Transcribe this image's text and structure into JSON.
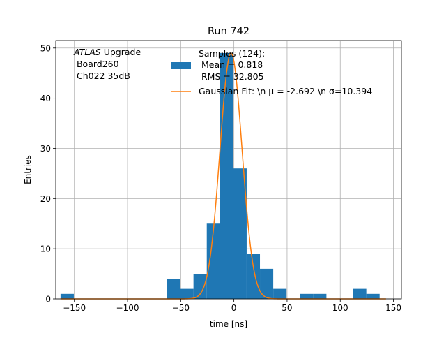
{
  "chart_data": {
    "type": "bar",
    "title": "Run 742",
    "xlabel": "time [ns]",
    "ylabel": "Entries",
    "xlim": [
      -167.5,
      157.5
    ],
    "ylim": [
      0,
      51.5
    ],
    "xticks": [
      -150,
      -100,
      -50,
      0,
      50,
      100,
      150
    ],
    "xtick_labels": [
      "−150",
      "−100",
      "−50",
      "0",
      "50",
      "100",
      "150"
    ],
    "yticks": [
      0,
      10,
      20,
      30,
      40,
      50
    ],
    "ytick_labels": [
      "0",
      "10",
      "20",
      "30",
      "40",
      "50"
    ],
    "grid": true,
    "legend_placement": "upper-right",
    "colors": {
      "hist": "#1f77b4",
      "fit": "#ff7f0e"
    },
    "annotation": {
      "italic": "ATLAS",
      "rest": " Upgrade",
      "line2": " Board260",
      "line3": " Ch022 35dB"
    },
    "histogram": {
      "name_lines": [
        "Samples (124):",
        " Mean = 0.818",
        " RMS = 32.805"
      ],
      "bins": [
        {
          "x0": -163,
          "x1": -150.5,
          "value": 1
        },
        {
          "x0": -63,
          "x1": -50.5,
          "value": 4
        },
        {
          "x0": -50.5,
          "x1": -38,
          "value": 2
        },
        {
          "x0": -38,
          "x1": -25.5,
          "value": 5
        },
        {
          "x0": -25.5,
          "x1": -13,
          "value": 15
        },
        {
          "x0": -13,
          "x1": -0.5,
          "value": 49
        },
        {
          "x0": -0.5,
          "x1": 12,
          "value": 26
        },
        {
          "x0": 12,
          "x1": 24.5,
          "value": 9
        },
        {
          "x0": 24.5,
          "x1": 37,
          "value": 6
        },
        {
          "x0": 37,
          "x1": 49.5,
          "value": 2
        },
        {
          "x0": 49.5,
          "x1": 62,
          "value": 0
        },
        {
          "x0": 62,
          "x1": 74.5,
          "value": 1
        },
        {
          "x0": 74.5,
          "x1": 87,
          "value": 1
        },
        {
          "x0": 87,
          "x1": 99.5,
          "value": 0
        },
        {
          "x0": 99.5,
          "x1": 112,
          "value": 0
        },
        {
          "x0": 112,
          "x1": 124.5,
          "value": 2
        },
        {
          "x0": 124.5,
          "x1": 137,
          "value": 1
        }
      ]
    },
    "fit": {
      "label": "Gaussian Fit: \\n μ = -2.692 \\n σ=10.394",
      "mu": -2.692,
      "sigma": 10.394,
      "amplitude": 49,
      "x_range": [
        -163,
        143
      ]
    }
  }
}
